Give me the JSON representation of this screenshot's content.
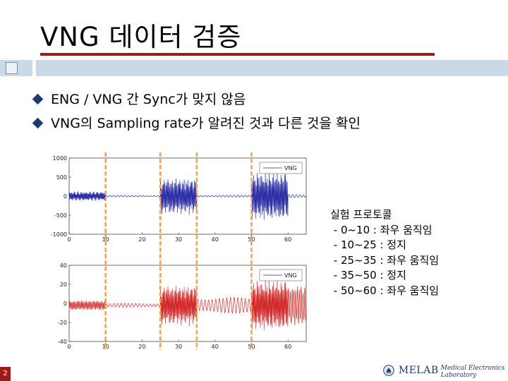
{
  "slide": {
    "title": "VNG 데이터 검증",
    "bullets": [
      "ENG / VNG 간 Sync가 맞지 않음",
      "VNG의 Sampling rate가 알려진 것과 다른 것을 확인"
    ],
    "protocol": {
      "heading": "실험 프로토콜",
      "items": [
        " - 0~10 : 좌우 움직임",
        " - 10~25 : 정지",
        " - 25~35 : 좌우 움직임",
        " - 35~50 : 정지",
        " - 50~60 : 좌우 움직임"
      ]
    },
    "page_number": "2",
    "logo": {
      "name": "MELAB",
      "subtitle": "Medical Electronics Laboratory"
    }
  },
  "colors": {
    "title_rule": "#9e1b1b",
    "band": "#c9d9e6",
    "bullet": "#1f3a70",
    "top_series": "#2b2fa6",
    "bottom_series": "#d22a2a",
    "marker": "#f0a050"
  },
  "chart_data": [
    {
      "type": "line",
      "xlim": [
        0,
        65
      ],
      "ylim": [
        -1000,
        1000
      ],
      "xticks": [
        "0",
        "10",
        "20",
        "30",
        "40",
        "50",
        "60"
      ],
      "yticks": [
        "1000",
        "500",
        "0",
        "-500",
        "-1000"
      ],
      "legend": "VNG",
      "legend_position": "top-right",
      "series": [
        {
          "segments": [
            {
              "x0": 0,
              "x1": 10,
              "amp": 120,
              "freq": 5
            },
            {
              "x0": 10,
              "x1": 25,
              "amp": 20,
              "freq": 1
            },
            {
              "x0": 25,
              "x1": 35,
              "amp": 450,
              "freq": 4
            },
            {
              "x0": 35,
              "x1": 50,
              "amp": 25,
              "freq": 1
            },
            {
              "x0": 50,
              "x1": 60,
              "amp": 600,
              "freq": 4
            },
            {
              "x0": 60,
              "x1": 65,
              "amp": 40,
              "freq": 1
            }
          ]
        }
      ]
    },
    {
      "type": "line",
      "xlim": [
        0,
        65
      ],
      "ylim": [
        -40,
        40
      ],
      "xticks": [
        "0",
        "10",
        "20",
        "30",
        "40",
        "50",
        "60"
      ],
      "yticks": [
        "40",
        "20",
        "0",
        "-20",
        "-40"
      ],
      "legend": "VNG",
      "legend_position": "top-right",
      "series": [
        {
          "segments": [
            {
              "x0": 0,
              "x1": 10,
              "amp": 5,
              "freq": 3
            },
            {
              "x0": 10,
              "x1": 25,
              "amp": 2,
              "freq": 1
            },
            {
              "x0": 25,
              "x1": 35,
              "amp": 20,
              "freq": 4
            },
            {
              "x0": 35,
              "x1": 50,
              "amp": 8,
              "freq": 1
            },
            {
              "x0": 50,
              "x1": 60,
              "amp": 25,
              "freq": 4
            },
            {
              "x0": 60,
              "x1": 65,
              "amp": 20,
              "freq": 2
            }
          ]
        }
      ]
    }
  ],
  "markers": {
    "x": [
      10,
      25,
      35,
      50
    ]
  }
}
